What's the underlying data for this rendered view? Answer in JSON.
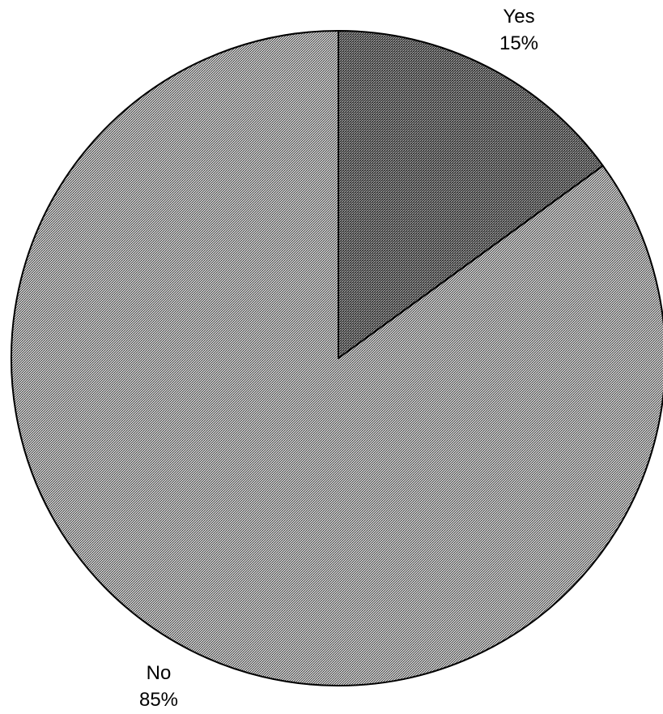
{
  "chart_data": {
    "type": "pie",
    "title": "",
    "slices": [
      {
        "label": "Yes",
        "value": 15,
        "value_label": "15%",
        "color": "#5f5f5f"
      },
      {
        "label": "No",
        "value": 85,
        "value_label": "85%",
        "color": "#a8a8a8"
      }
    ],
    "legend": "none",
    "start_angle_deg": 0,
    "direction": "clockwise"
  }
}
